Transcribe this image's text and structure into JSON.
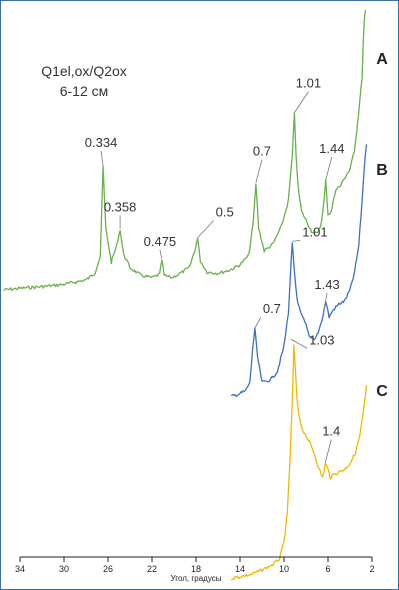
{
  "chart_data": {
    "type": "line",
    "title_lines": [
      "Q1el,ox/Q2ox",
      "6-12 см"
    ],
    "xlabel": "Угол, градусы",
    "ylabel": "",
    "xlim": [
      34,
      2
    ],
    "x_reversed": true,
    "x_ticks": [
      34,
      30,
      26,
      22,
      18,
      14,
      10,
      6,
      2
    ],
    "grid": false,
    "series": [
      {
        "name": "A",
        "color": "#6ab04c",
        "x": [
          35.5,
          34,
          32,
          30,
          28,
          27.2,
          26.7,
          26.45,
          26.2,
          25.7,
          25.2,
          24.9,
          24.6,
          24,
          23,
          22,
          21.3,
          21.1,
          20.9,
          20.2,
          19.5,
          18.6,
          18.1,
          17.85,
          17.6,
          17,
          16,
          15,
          14,
          13.2,
          12.8,
          12.55,
          12.3,
          11.8,
          11,
          10.2,
          9.6,
          9.25,
          9.05,
          8.9,
          8.7,
          8.4,
          8.0,
          7.5,
          7.0,
          6.6,
          6.35,
          6.2,
          6.0,
          5.7,
          5.3,
          4.9,
          4.5,
          4.0,
          3.6,
          3.3,
          3.1,
          2.9,
          2.8,
          2.7,
          2.6
        ],
        "y": [
          0.0,
          0.3,
          0.6,
          1.0,
          1.8,
          3.0,
          6.0,
          22.0,
          11.0,
          5.0,
          8.0,
          10.8,
          6.5,
          4.0,
          2.6,
          2.2,
          2.8,
          5.4,
          2.6,
          2.2,
          2.9,
          4.0,
          7.2,
          9.2,
          5.2,
          3.2,
          3.0,
          3.5,
          4.5,
          6.2,
          12.0,
          19.0,
          11.0,
          7.0,
          8.2,
          11.5,
          16.0,
          24.0,
          31.5,
          24.0,
          18.0,
          14.0,
          12.5,
          10.5,
          10.0,
          12.0,
          16.0,
          19.5,
          13.5,
          14.0,
          18.0,
          18.5,
          20.0,
          21.5,
          25.0,
          30.0,
          34.0,
          38.0,
          44.0,
          48.0,
          50.0
        ],
        "annotations": [
          {
            "label": "0.334",
            "x": 26.45,
            "y": 22.0
          },
          {
            "label": "0.358",
            "x": 24.9,
            "y": 10.8
          },
          {
            "label": "0.475",
            "x": 21.1,
            "y": 5.4
          },
          {
            "label": "0.5",
            "x": 17.85,
            "y": 9.2
          },
          {
            "label": "0.7",
            "x": 12.55,
            "y": 19.0
          },
          {
            "label": "1.01",
            "x": 9.05,
            "y": 31.5
          },
          {
            "label": "1.44",
            "x": 6.2,
            "y": 19.5
          }
        ]
      },
      {
        "name": "B",
        "color": "#3d6fc0",
        "x": [
          14.8,
          14.0,
          13.5,
          13.1,
          12.85,
          12.65,
          12.4,
          12.0,
          11.2,
          10.6,
          10.0,
          9.6,
          9.35,
          9.25,
          9.05,
          8.8,
          8.5,
          8.1,
          7.7,
          7.2,
          6.8,
          6.45,
          6.2,
          5.9,
          5.5,
          5.0,
          4.5,
          4.0,
          3.6,
          3.2,
          2.9,
          2.7,
          2.5
        ],
        "y": [
          -19.0,
          -18.5,
          -18.0,
          -16.5,
          -10.5,
          -7.0,
          -12.0,
          -16.5,
          -16.0,
          -14.5,
          -10.0,
          -4.0,
          5.0,
          8.5,
          3.0,
          -2.0,
          -4.0,
          -5.5,
          -8.5,
          -9.0,
          -7.0,
          -4.5,
          -2.0,
          -4.8,
          -3.5,
          -2.5,
          -2.0,
          0.0,
          3.0,
          8.0,
          16.0,
          22.0,
          26.0
        ],
        "annotations": [
          {
            "label": "0.7",
            "x": 12.65,
            "y": -7.0
          },
          {
            "label": "1.01",
            "x": 9.25,
            "y": 8.5
          },
          {
            "label": "1.03",
            "x": 9.35,
            "y": -9.0
          },
          {
            "label": "1.43",
            "x": 6.45,
            "y": -4.5
          }
        ]
      },
      {
        "name": "C",
        "color": "#f0b800",
        "x": [
          14.8,
          14.0,
          13.0,
          12.0,
          11.0,
          10.4,
          10.0,
          9.7,
          9.45,
          9.25,
          9.1,
          8.95,
          8.8,
          8.6,
          8.3,
          8.0,
          7.6,
          7.2,
          6.8,
          6.5,
          6.25,
          6.0,
          5.8,
          5.5,
          5.0,
          4.5,
          4.0,
          3.5,
          3.1,
          2.8,
          2.6,
          2.5
        ],
        "y": [
          -51.5,
          -51.2,
          -50.8,
          -50.0,
          -49.0,
          -48.0,
          -45.0,
          -40.0,
          -30.0,
          -20.0,
          -10.0,
          -15.0,
          -20.0,
          -23.0,
          -25.0,
          -26.0,
          -27.5,
          -29.5,
          -32.0,
          -33.5,
          -31.0,
          -32.0,
          -33.5,
          -33.0,
          -32.5,
          -32.0,
          -31.0,
          -29.0,
          -26.0,
          -22.0,
          -19.0,
          -17.0
        ],
        "annotations": [
          {
            "label": "1.4",
            "x": 6.25,
            "y": -31.0
          }
        ]
      }
    ]
  }
}
